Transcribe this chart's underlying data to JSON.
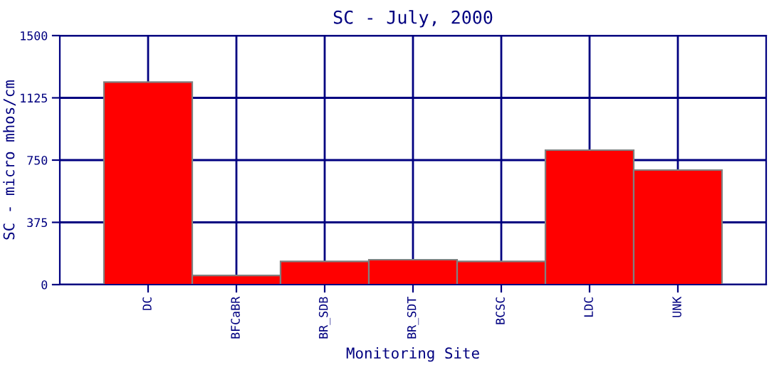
{
  "chart_data": {
    "type": "bar",
    "title": "SC - July, 2000",
    "xlabel": "Monitoring Site",
    "ylabel": "SC - micro mhos/cm",
    "categories": [
      "DC",
      "BFCaBR",
      "BR_SDB",
      "BR_SDT",
      "BCSC",
      "LDC",
      "UNK"
    ],
    "values": [
      1220,
      55,
      140,
      150,
      140,
      810,
      690
    ],
    "color": "#ff0000",
    "ylim": [
      0,
      1500
    ],
    "yticks": [
      0,
      375,
      750,
      1125,
      1500
    ],
    "grid": true
  }
}
